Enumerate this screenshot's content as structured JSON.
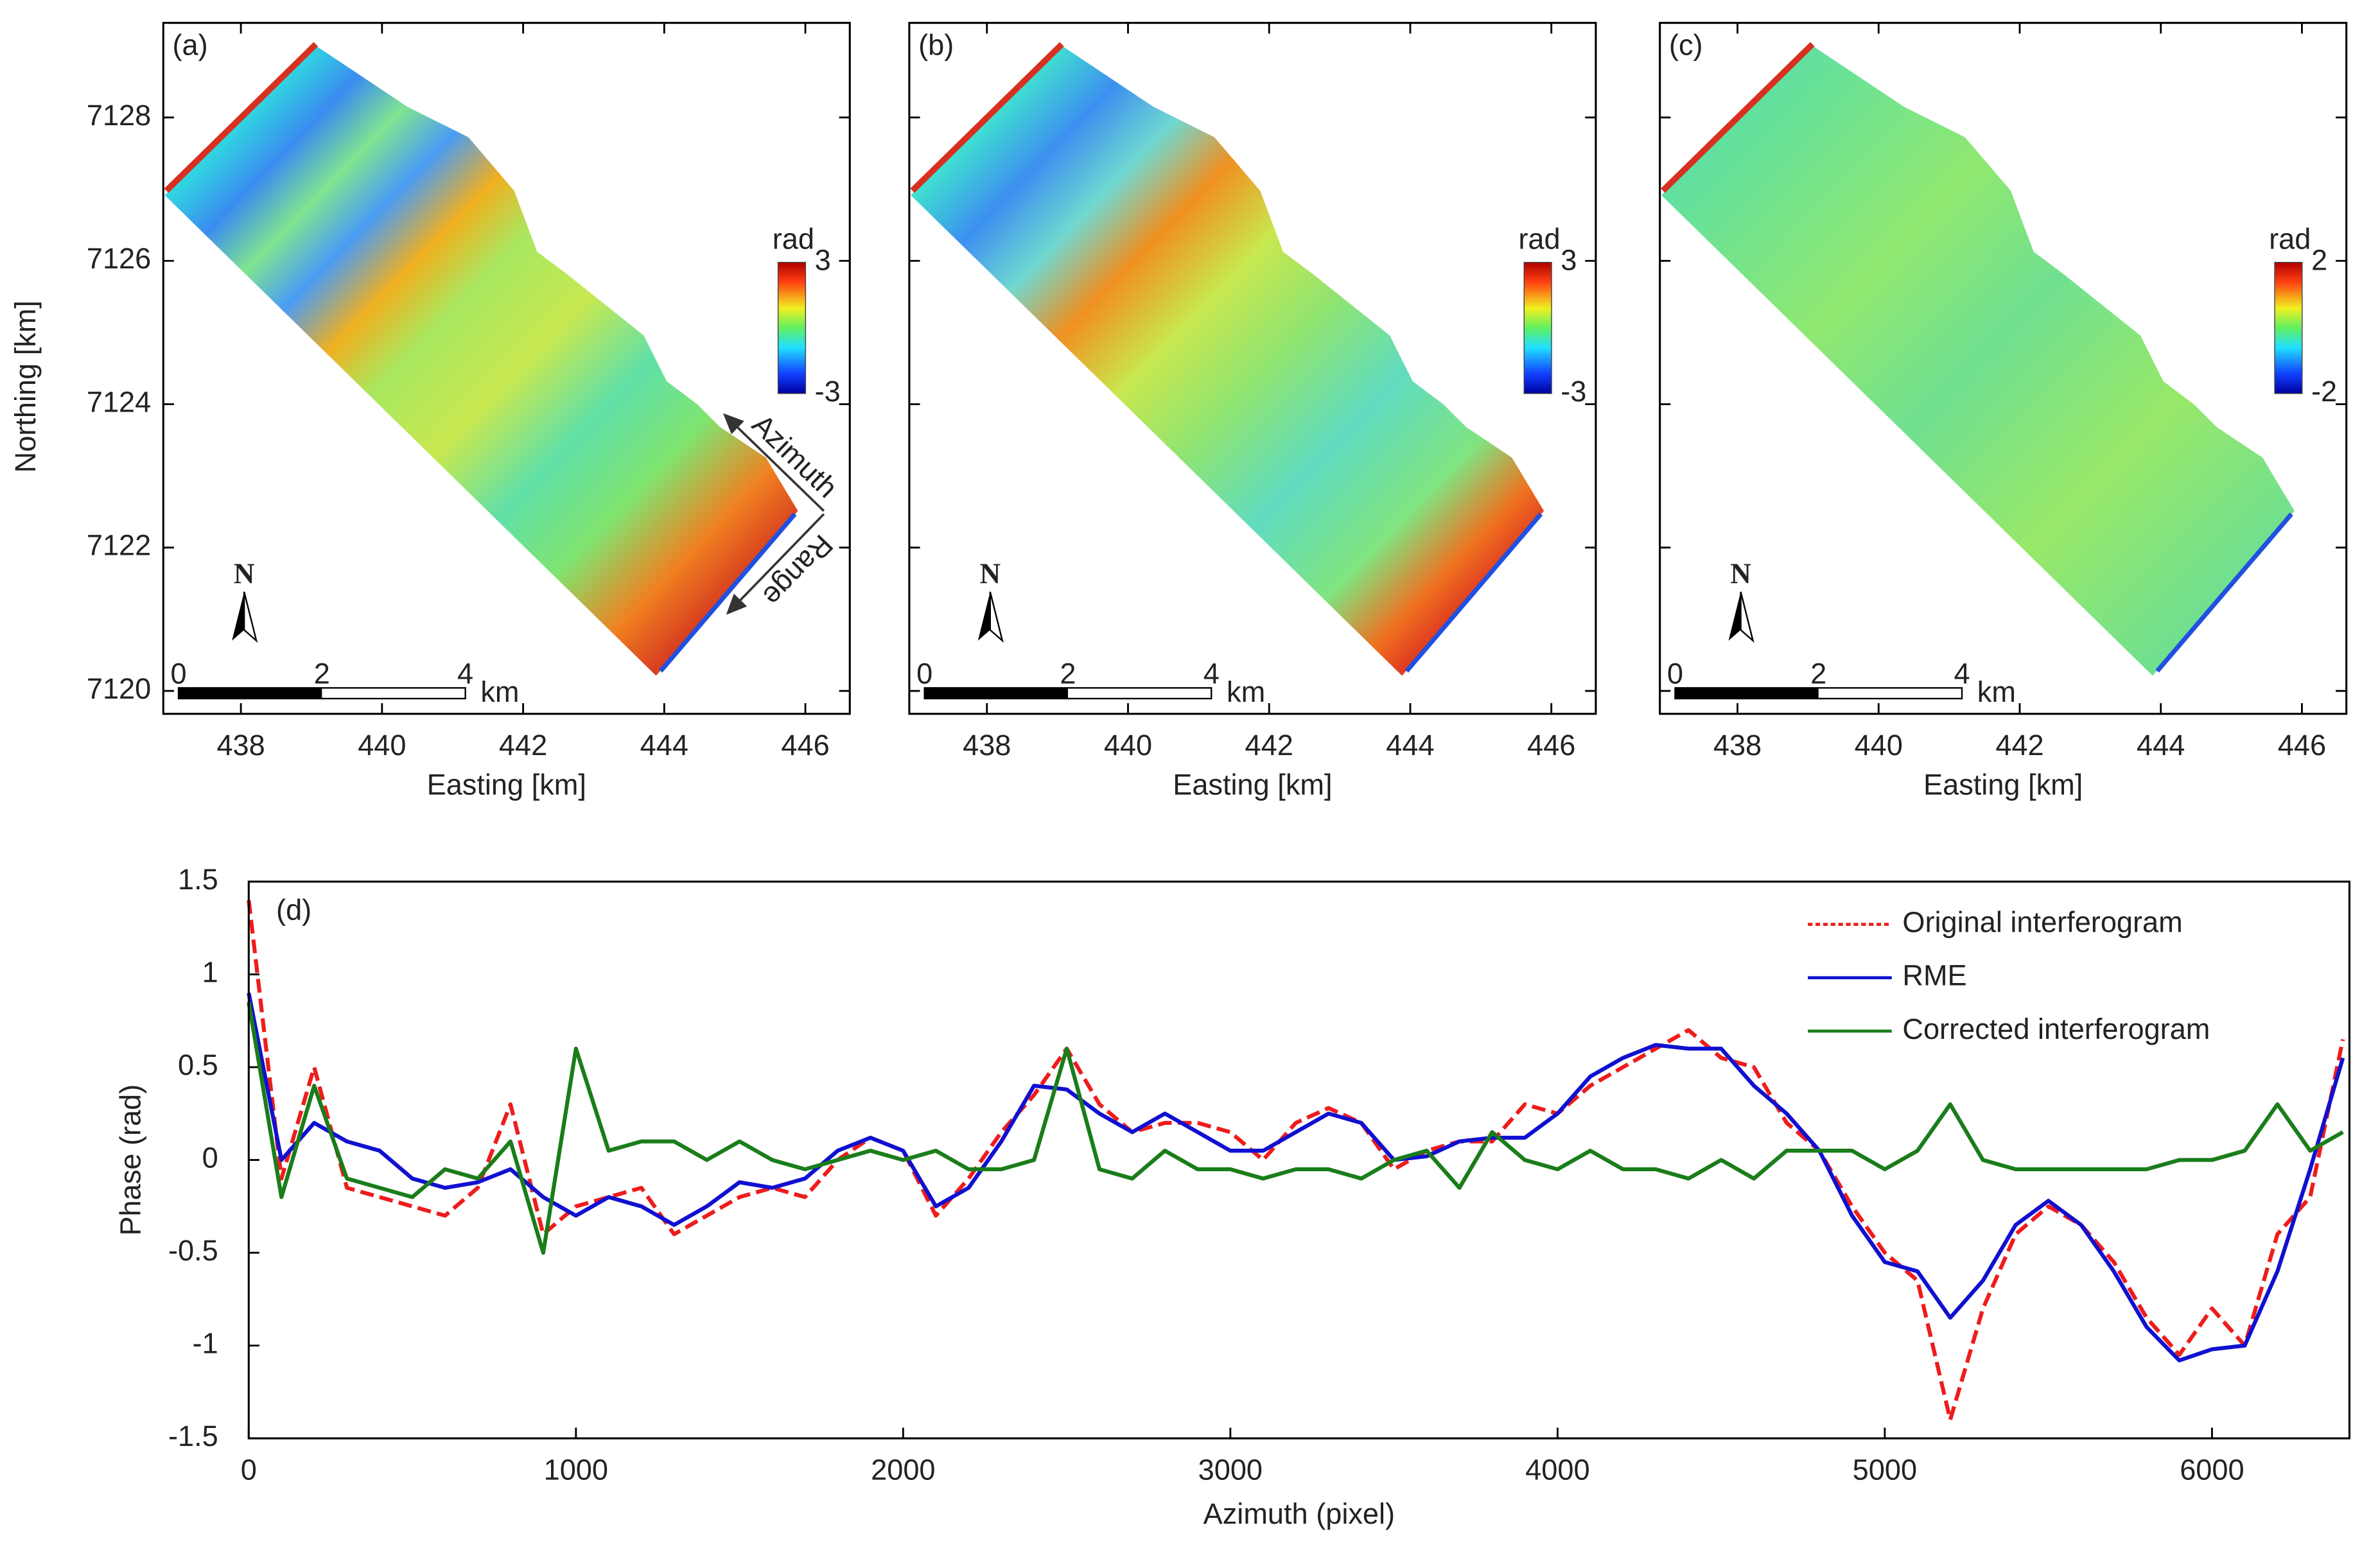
{
  "chart_data": [
    {
      "type": "map",
      "panel_label": "(a)",
      "xlabel": "Easting [km]",
      "ylabel": "Northing [km]",
      "xlim": [
        436.9,
        446.63
      ],
      "ylim": [
        7119.68,
        7129.32
      ],
      "xticks": [
        438,
        440,
        442,
        444,
        446
      ],
      "yticks": [
        7120,
        7122,
        7124,
        7126,
        7128
      ],
      "ytick_labels": true,
      "colorbar": {
        "label": "rad",
        "lim": [
          -3,
          3
        ],
        "ticks": [
          3,
          -3
        ]
      },
      "north": "N",
      "scale_bar": {
        "ticks": [
          0,
          2,
          4
        ],
        "unit": "km"
      },
      "annotations": [
        "Azimuth",
        "Range"
      ],
      "fill": "a"
    },
    {
      "type": "map",
      "panel_label": "(b)",
      "xlabel": "Easting [km]",
      "xlim": [
        436.9,
        446.63
      ],
      "ylim": [
        7119.68,
        7129.32
      ],
      "xticks": [
        438,
        440,
        442,
        444,
        446
      ],
      "yticks": [
        7120,
        7122,
        7124,
        7126,
        7128
      ],
      "ytick_labels": false,
      "colorbar": {
        "label": "rad",
        "lim": [
          -3,
          3
        ],
        "ticks": [
          3,
          -3
        ]
      },
      "north": "N",
      "scale_bar": {
        "ticks": [
          0,
          2,
          4
        ],
        "unit": "km"
      },
      "fill": "b"
    },
    {
      "type": "map",
      "panel_label": "(c)",
      "xlabel": "Easting [km]",
      "xlim": [
        436.9,
        446.63
      ],
      "ylim": [
        7119.68,
        7129.32
      ],
      "xticks": [
        438,
        440,
        442,
        444,
        446
      ],
      "yticks": [
        7120,
        7122,
        7124,
        7126,
        7128
      ],
      "ytick_labels": false,
      "colorbar": {
        "label": "rad",
        "lim": [
          -2,
          2
        ],
        "ticks": [
          2,
          -2
        ]
      },
      "north": "N",
      "scale_bar": {
        "ticks": [
          0,
          2,
          4
        ],
        "unit": "km"
      },
      "fill": "c"
    },
    {
      "type": "line",
      "panel_label": "(d)",
      "xlabel": "Azimuth (pixel)",
      "ylabel": "Phase (rad)",
      "xlim": [
        0,
        6420
      ],
      "ylim": [
        -1.5,
        1.5
      ],
      "xticks": [
        0,
        1000,
        2000,
        3000,
        4000,
        5000,
        6000
      ],
      "yticks": [
        -1.5,
        -1,
        -0.5,
        0,
        0.5,
        1,
        1.5
      ],
      "legend": "upper right",
      "x": [
        0,
        100,
        200,
        300,
        400,
        500,
        600,
        700,
        800,
        900,
        1000,
        1100,
        1200,
        1300,
        1400,
        1500,
        1600,
        1700,
        1800,
        1900,
        2000,
        2100,
        2200,
        2300,
        2400,
        2500,
        2600,
        2700,
        2800,
        2900,
        3000,
        3100,
        3200,
        3300,
        3400,
        3500,
        3600,
        3700,
        3800,
        3900,
        4000,
        4100,
        4200,
        4300,
        4400,
        4500,
        4600,
        4700,
        4800,
        4900,
        5000,
        5100,
        5200,
        5300,
        5400,
        5500,
        5600,
        5700,
        5800,
        5900,
        6000,
        6100,
        6200,
        6300,
        6400
      ],
      "series": [
        {
          "name": "Original interferogram",
          "color": "#ee1c1c",
          "line_style": "dashed",
          "values": [
            1.4,
            -0.1,
            0.5,
            -0.15,
            -0.2,
            -0.25,
            -0.3,
            -0.15,
            0.3,
            -0.4,
            -0.25,
            -0.2,
            -0.15,
            -0.4,
            -0.3,
            -0.2,
            -0.15,
            -0.2,
            0,
            0.12,
            0.05,
            -0.3,
            -0.1,
            0.15,
            0.35,
            0.6,
            0.3,
            0.15,
            0.2,
            0.2,
            0.15,
            0,
            0.2,
            0.28,
            0.2,
            -0.05,
            0.05,
            0.1,
            0.1,
            0.3,
            0.25,
            0.4,
            0.5,
            0.6,
            0.7,
            0.55,
            0.5,
            0.2,
            0.05,
            -0.25,
            -0.5,
            -0.65,
            -1.4,
            -0.8,
            -0.4,
            -0.25,
            -0.35,
            -0.55,
            -0.85,
            -1.05,
            -0.8,
            -1.0,
            -0.4,
            -0.2,
            0.65
          ]
        },
        {
          "name": "RME",
          "color": "#1010d0",
          "line_style": "solid",
          "values": [
            0.9,
            0.0,
            0.2,
            0.1,
            0.05,
            -0.1,
            -0.15,
            -0.12,
            -0.05,
            -0.2,
            -0.3,
            -0.2,
            -0.25,
            -0.35,
            -0.25,
            -0.12,
            -0.15,
            -0.1,
            0.05,
            0.12,
            0.05,
            -0.25,
            -0.15,
            0.1,
            0.4,
            0.38,
            0.25,
            0.15,
            0.25,
            0.15,
            0.05,
            0.05,
            0.15,
            0.25,
            0.2,
            0,
            0.02,
            0.1,
            0.12,
            0.12,
            0.25,
            0.45,
            0.55,
            0.62,
            0.6,
            0.6,
            0.4,
            0.25,
            0.05,
            -0.3,
            -0.55,
            -0.6,
            -0.85,
            -0.65,
            -0.35,
            -0.22,
            -0.35,
            -0.6,
            -0.9,
            -1.08,
            -1.02,
            -1.0,
            -0.6,
            -0.05,
            0.55
          ]
        },
        {
          "name": "Corrected interferogram",
          "color": "#1a7d1a",
          "line_style": "solid",
          "values": [
            0.85,
            -0.2,
            0.4,
            -0.1,
            -0.15,
            -0.2,
            -0.05,
            -0.1,
            0.1,
            -0.5,
            0.6,
            0.05,
            0.1,
            0.1,
            0,
            0.1,
            0,
            -0.05,
            0,
            0.05,
            0,
            0.05,
            -0.05,
            -0.05,
            0,
            0.6,
            -0.05,
            -0.1,
            0.05,
            -0.05,
            -0.05,
            -0.1,
            -0.05,
            -0.05,
            -0.1,
            0,
            0.05,
            -0.15,
            0.15,
            0,
            -0.05,
            0.05,
            -0.05,
            -0.05,
            -0.1,
            0,
            -0.1,
            0.05,
            0.05,
            0.05,
            -0.05,
            0.05,
            0.3,
            0,
            -0.05,
            -0.05,
            -0.05,
            -0.05,
            -0.05,
            0,
            0,
            0.05,
            0.3,
            0.05,
            0.15
          ]
        }
      ]
    }
  ]
}
